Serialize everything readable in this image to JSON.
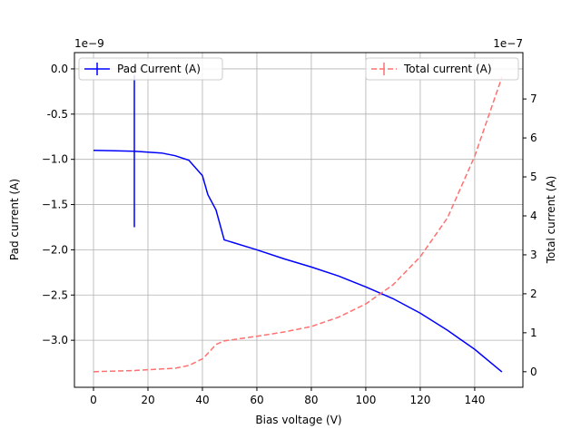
{
  "chart_data": {
    "type": "line",
    "x_label": "Bias voltage (V)",
    "y_label": "Pad current (A)",
    "y2_label": "Total current (A)",
    "y_offset_label": "1e−9",
    "y2_offset_label": "1e−7",
    "x": [
      0,
      15,
      20,
      25,
      30,
      35,
      40,
      42,
      45,
      48,
      60,
      70,
      80,
      90,
      100,
      110,
      120,
      130,
      140,
      150
    ],
    "series": [
      {
        "name": "Pad Current (A)",
        "color": "#0000ff",
        "dashed": false,
        "values": [
          -0.9,
          -0.91,
          -0.92,
          -0.93,
          -0.96,
          -1.01,
          -1.18,
          -1.39,
          -1.56,
          -1.89,
          -2.0,
          -2.1,
          -2.19,
          -2.29,
          -2.41,
          -2.54,
          -2.7,
          -2.89,
          -3.1,
          -3.35
        ],
        "errors": [
          null,
          0.84,
          null,
          null,
          null,
          null,
          null,
          null,
          null,
          null,
          null,
          null,
          null,
          null,
          null,
          null,
          null,
          null,
          null,
          null
        ]
      },
      {
        "name": "Total current (A)",
        "color": "#ff7070",
        "dashed": true,
        "axis": "y2",
        "values": [
          0,
          0.03,
          0.05,
          0.07,
          0.09,
          0.16,
          0.33,
          0.47,
          0.7,
          0.79,
          0.91,
          1.02,
          1.16,
          1.4,
          1.74,
          2.23,
          2.95,
          3.95,
          5.53,
          7.56
        ]
      }
    ],
    "xlim": [
      -7,
      157.7
    ],
    "xticks": [
      0,
      20,
      40,
      60,
      80,
      100,
      120,
      140
    ],
    "ylim": [
      -3.52,
      0.18
    ],
    "yticks": [
      {
        "value": 0,
        "label": "0.0"
      },
      -0.5,
      {
        "value": -1,
        "label": "−1.0"
      },
      {
        "value": -1.5,
        "label": "−1.5"
      },
      {
        "value": -2,
        "label": "−2.0"
      },
      {
        "value": -2.5,
        "label": "−2.5"
      },
      {
        "value": -3,
        "label": "−3.0"
      }
    ],
    "y2lim": [
      -0.4,
      8.19
    ],
    "y2ticks": [
      0,
      1,
      2,
      3,
      4,
      5,
      6,
      7
    ],
    "grid": true
  }
}
